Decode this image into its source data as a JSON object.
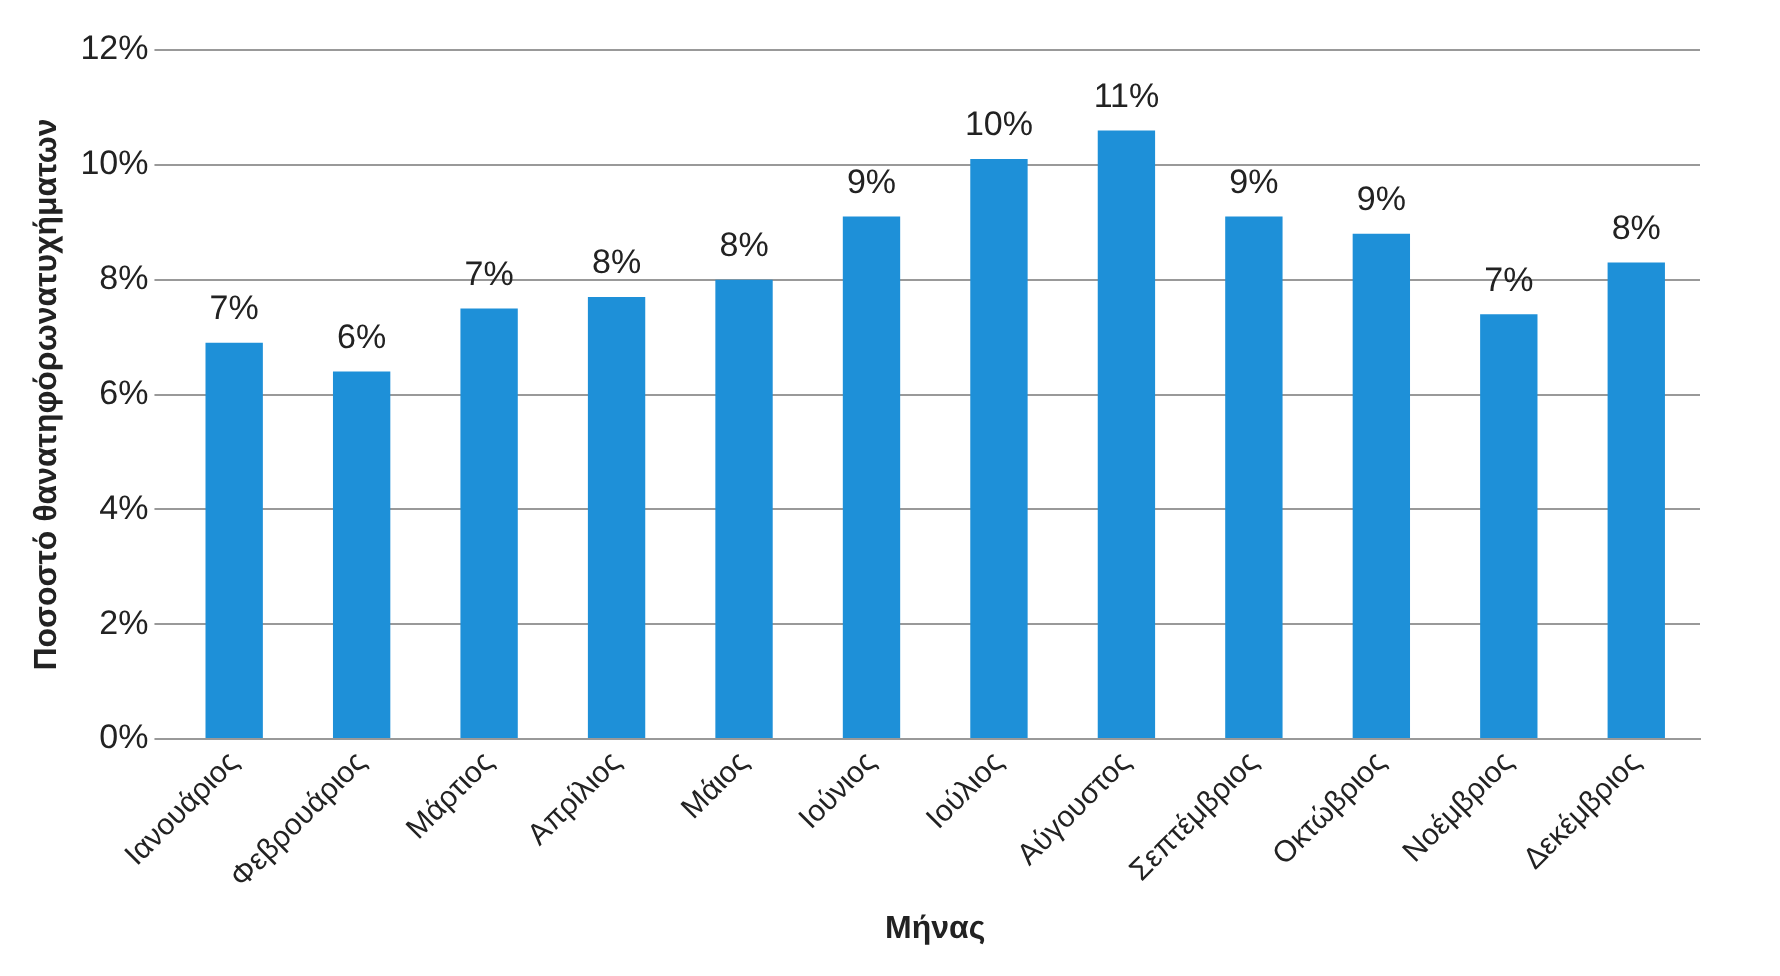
{
  "chart_data": {
    "type": "bar",
    "xlabel": "Μήνας",
    "ylabel": "Ποσοστό θανατηφόρωνατυχήματων",
    "categories": [
      "Ιανουάριος",
      "Φεβρουάριος",
      "Μάρτιος",
      "Απρίλιος",
      "Μάιος",
      "Ιούνιος",
      "Ιούλιος",
      "Αύγουστος",
      "Σεπτέμβριος",
      "Οκτώβριος",
      "Νοέμβριος",
      "Δεκέμβριος"
    ],
    "values": [
      6.9,
      6.4,
      7.5,
      7.7,
      8.0,
      9.1,
      10.1,
      10.6,
      9.1,
      8.8,
      7.4,
      8.3
    ],
    "value_labels": [
      "7%",
      "6%",
      "7%",
      "8%",
      "8%",
      "9%",
      "10%",
      "11%",
      "9%",
      "9%",
      "7%",
      "8%"
    ],
    "color": "#1e90d8",
    "ylim": [
      0,
      12
    ],
    "yticks": [
      {
        "value": 0,
        "label": "0%"
      },
      {
        "value": 2,
        "label": "2%"
      },
      {
        "value": 4,
        "label": "4%"
      },
      {
        "value": 6,
        "label": "6%"
      },
      {
        "value": 8,
        "label": "8%"
      },
      {
        "value": 10,
        "label": "10%"
      },
      {
        "value": 12,
        "label": "12%"
      }
    ],
    "grid": "y",
    "legend": false
  }
}
